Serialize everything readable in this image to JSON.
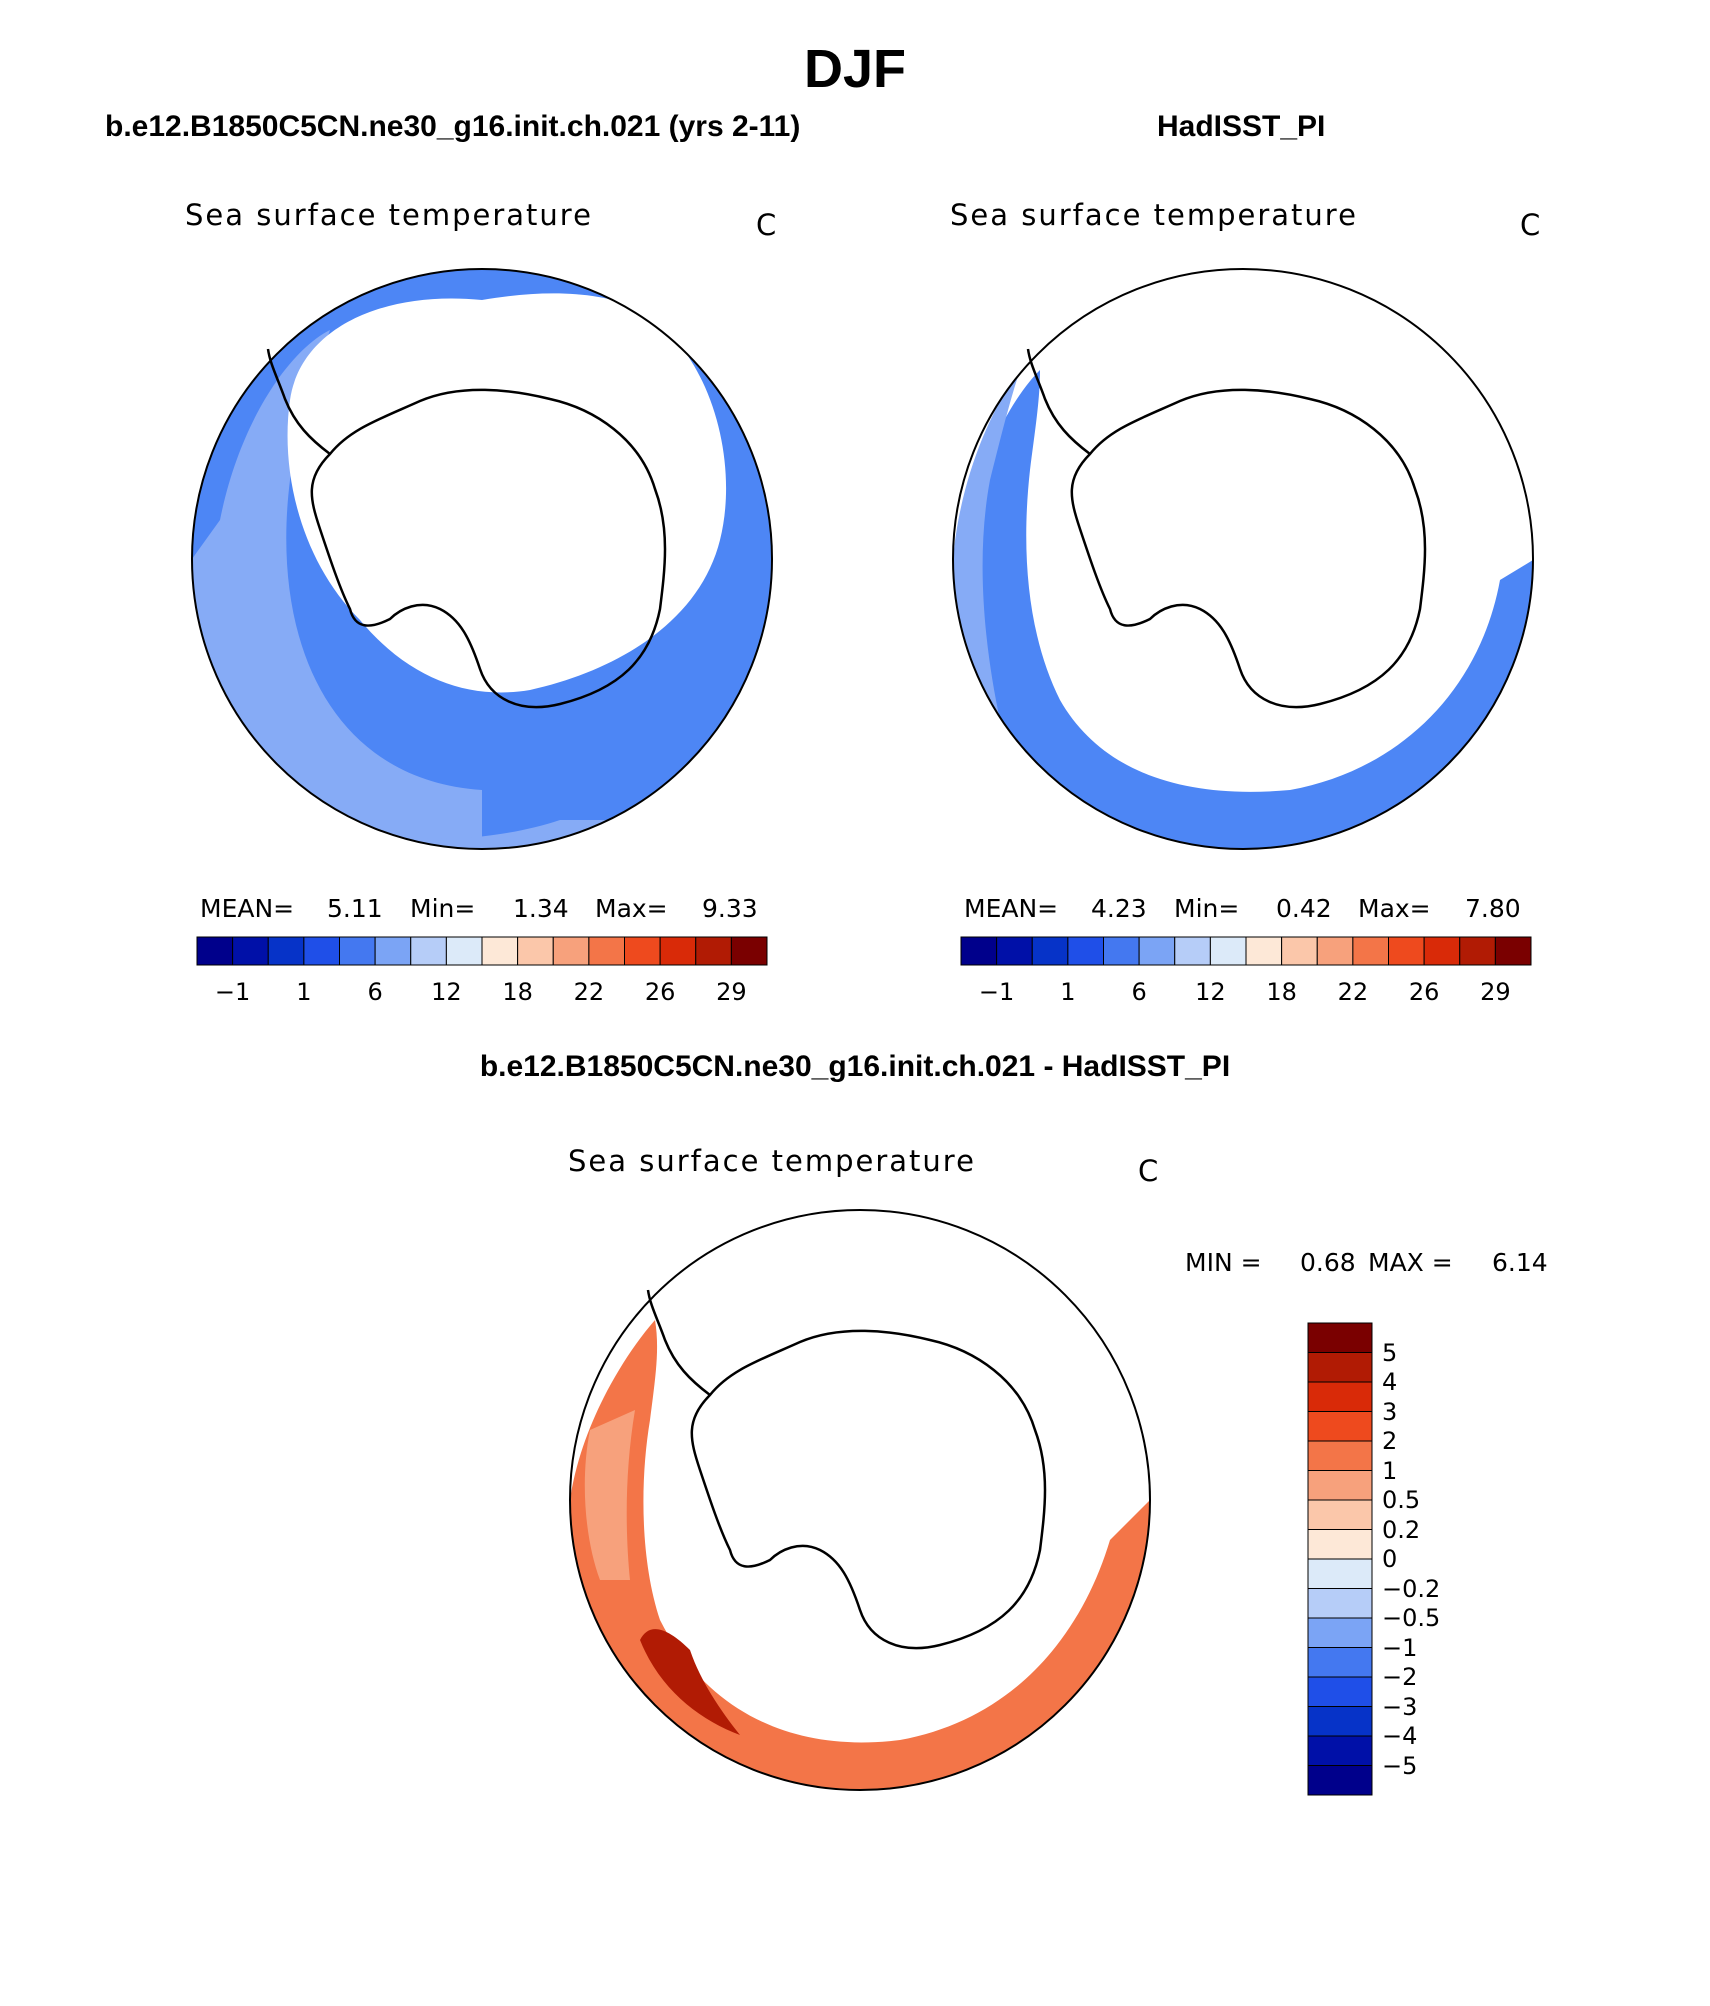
{
  "season_title": "DJF",
  "panels": [
    {
      "header": "b.e12.B1850C5CN.ne30_g16.init.ch.021 (yrs 2-11)",
      "variable": "Sea surface temperature",
      "units": "C",
      "stats": {
        "mean_label": "MEAN=",
        "mean": "5.11",
        "min_label": "Min=",
        "min": "1.34",
        "max_label": "Max=",
        "max": "9.33"
      },
      "colorbar_ticks": [
        "−1",
        "1",
        "6",
        "12",
        "18",
        "22",
        "26",
        "29"
      ]
    },
    {
      "header": "HadISST_PI",
      "variable": "Sea surface temperature",
      "units": "C",
      "stats": {
        "mean_label": "MEAN=",
        "mean": "4.23",
        "min_label": "Min=",
        "min": "0.42",
        "max_label": "Max=",
        "max": "7.80"
      },
      "colorbar_ticks": [
        "−1",
        "1",
        "6",
        "12",
        "18",
        "22",
        "26",
        "29"
      ]
    }
  ],
  "diff_panel": {
    "header": "b.e12.B1850C5CN.ne30_g16.init.ch.021 - HadISST_PI",
    "variable": "Sea surface temperature",
    "units": "C",
    "minmax": {
      "min_label": "MIN =",
      "min": "0.68",
      "max_label": "MAX =",
      "max": "6.14"
    },
    "colorbar_ticks": [
      "5",
      "4",
      "3",
      "2",
      "1",
      "0.5",
      "0.2",
      "0",
      "−0.2",
      "−0.5",
      "−1",
      "−2",
      "−3",
      "−4",
      "−5"
    ]
  },
  "colors": {
    "abs_scale": [
      "#00008b",
      "#0010a8",
      "#0633c8",
      "#1f4fe8",
      "#4478f0",
      "#7ba4f5",
      "#b6cdf8",
      "#dceaf9",
      "#fde8d7",
      "#fbc7aa",
      "#f7a17c",
      "#f37548",
      "#ee4a1e",
      "#d92a08",
      "#b11b04",
      "#7a0000"
    ],
    "diff_scale": [
      "#00008b",
      "#0010a8",
      "#0633c8",
      "#1f4fe8",
      "#4478f0",
      "#7ba4f5",
      "#b6cdf8",
      "#dceaf9",
      "#fde8d7",
      "#fbc7aa",
      "#f7a17c",
      "#f37548",
      "#ee4a1e",
      "#d92a08",
      "#b11b04",
      "#7a0000"
    ],
    "land": "#ffffff",
    "coast": "#000000"
  }
}
